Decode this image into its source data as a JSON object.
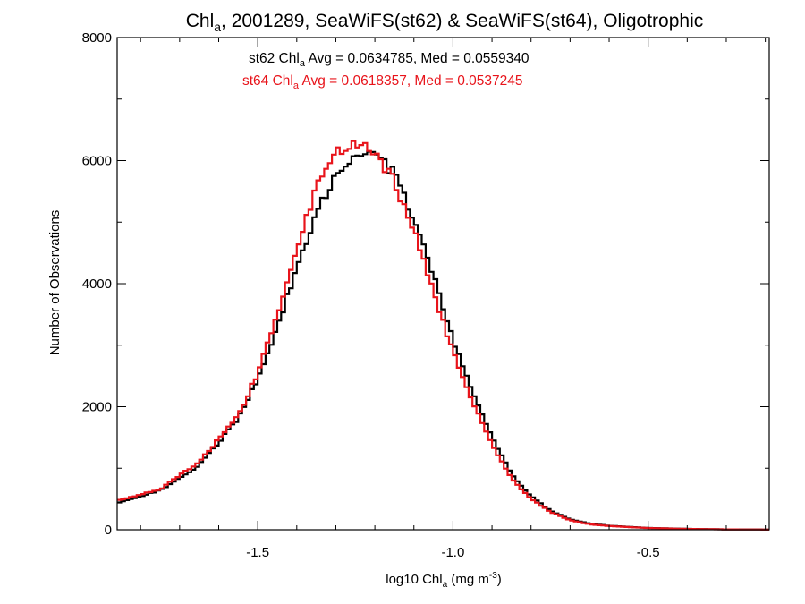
{
  "chart_data": {
    "type": "line",
    "title": {
      "prefix": "Chl",
      "sub": "a",
      "suffix": ", 2001289, SeaWiFS(st62) & SeaWiFS(st64), Oligotrophic"
    },
    "xlabel": {
      "prefix": "log10 Chl",
      "sub": "a",
      "mid": " (mg m",
      "sup": "-3",
      "suffix": ")"
    },
    "ylabel": "Number of Observations",
    "xlim": [
      -1.86,
      -0.19
    ],
    "ylim": [
      0,
      8000
    ],
    "xticks": [
      {
        "value": -1.5,
        "label": "-1.5"
      },
      {
        "value": -1.0,
        "label": "-1.0"
      },
      {
        "value": -0.5,
        "label": "-0.5"
      }
    ],
    "yticks": [
      {
        "value": 0,
        "label": "0"
      },
      {
        "value": 2000,
        "label": "2000"
      },
      {
        "value": 4000,
        "label": "4000"
      },
      {
        "value": 6000,
        "label": "6000"
      },
      {
        "value": 8000,
        "label": "8000"
      }
    ],
    "x_minor_step": 0.1,
    "y_minor_step": 1000,
    "series": [
      {
        "name": "st62",
        "color": "#000000",
        "annotation": {
          "prefix": "st62 Chl",
          "sub": "a",
          "suffix": " Avg = 0.0634785, Med = 0.0559340"
        },
        "x": [
          -1.86,
          -1.75,
          -1.65,
          -1.55,
          -1.5,
          -1.45,
          -1.4,
          -1.35,
          -1.3,
          -1.25,
          -1.2,
          -1.15,
          -1.1,
          -1.05,
          -1.0,
          -0.95,
          -0.9,
          -0.85,
          -0.8,
          -0.75,
          -0.7,
          -0.65,
          -0.6,
          -0.5,
          -0.4,
          -0.3,
          -0.19
        ],
        "values": [
          430,
          640,
          1050,
          1800,
          2450,
          3300,
          4250,
          5150,
          5750,
          6050,
          6080,
          5800,
          5050,
          4150,
          3100,
          2250,
          1500,
          900,
          540,
          310,
          170,
          100,
          65,
          30,
          15,
          6,
          3
        ]
      },
      {
        "name": "st64",
        "color": "#e8141b",
        "annotation": {
          "prefix": "st64 Chl",
          "sub": "a",
          "suffix": " Avg = 0.0618357, Med = 0.0537245"
        },
        "x": [
          -1.86,
          -1.75,
          -1.65,
          -1.55,
          -1.5,
          -1.45,
          -1.4,
          -1.35,
          -1.3,
          -1.25,
          -1.2,
          -1.15,
          -1.1,
          -1.05,
          -1.0,
          -0.95,
          -0.9,
          -0.85,
          -0.8,
          -0.75,
          -0.7,
          -0.65,
          -0.6,
          -0.5,
          -0.4,
          -0.3,
          -0.19
        ],
        "values": [
          470,
          660,
          1100,
          1850,
          2550,
          3500,
          4550,
          5550,
          6150,
          6300,
          6150,
          5650,
          4850,
          3850,
          2900,
          2080,
          1380,
          830,
          500,
          290,
          155,
          90,
          60,
          28,
          14,
          6,
          3
        ]
      }
    ],
    "grid": false,
    "legend": "top-center"
  }
}
